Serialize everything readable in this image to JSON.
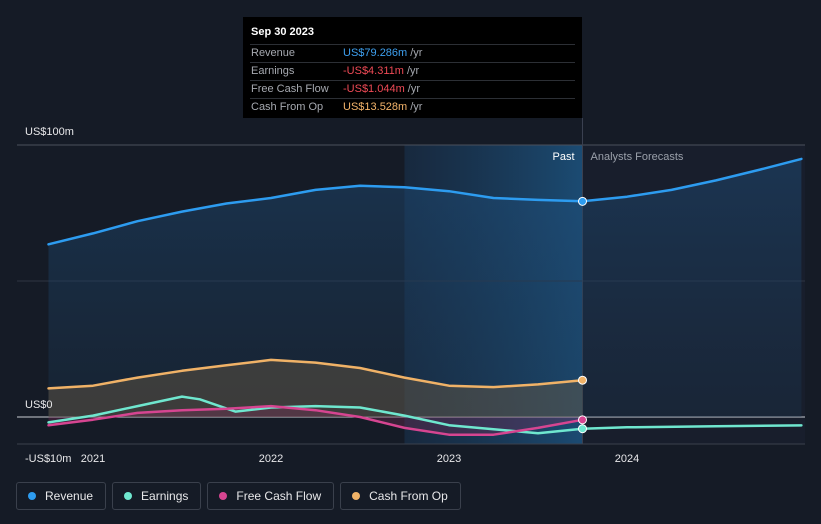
{
  "tooltip": {
    "date": "Sep 30 2023",
    "rows": [
      {
        "label": "Revenue",
        "value": "US$79.286m",
        "unit": "/yr",
        "color": "#3ea0f0"
      },
      {
        "label": "Earnings",
        "value": "-US$4.311m",
        "unit": "/yr",
        "color": "#f04a56"
      },
      {
        "label": "Free Cash Flow",
        "value": "-US$1.044m",
        "unit": "/yr",
        "color": "#f04a56"
      },
      {
        "label": "Cash From Op",
        "value": "US$13.528m",
        "unit": "/yr",
        "color": "#f5b56b"
      }
    ]
  },
  "labels": {
    "past": "Past",
    "forecast": "Analysts Forecasts"
  },
  "legend": [
    {
      "label": "Revenue",
      "color": "#2d9cf0"
    },
    {
      "label": "Earnings",
      "color": "#6fe7cf"
    },
    {
      "label": "Free Cash Flow",
      "color": "#d64591"
    },
    {
      "label": "Cash From Op",
      "color": "#f0b267"
    }
  ],
  "chart_data": {
    "type": "line",
    "y_tick_labels": [
      "US$100m",
      "US$0",
      "-US$10m"
    ],
    "x_tick_labels": [
      "2021",
      "2022",
      "2023",
      "2024"
    ],
    "ylim": [
      -10,
      100
    ],
    "xlim": [
      2020.6,
      2024.98
    ],
    "past_end": 2023.75,
    "highlight_start": 2022.75,
    "series": [
      {
        "name": "Revenue",
        "color": "#2d9cf0",
        "x": [
          2020.75,
          2021.0,
          2021.25,
          2021.5,
          2021.75,
          2022.0,
          2022.25,
          2022.5,
          2022.75,
          2023.0,
          2023.25,
          2023.5,
          2023.75
        ],
        "y": [
          63.5,
          67.5,
          72.0,
          75.5,
          78.5,
          80.5,
          83.5,
          85.0,
          84.5,
          83.0,
          80.5,
          79.8,
          79.286
        ]
      },
      {
        "name": "Revenue forecast",
        "color": "#2d9cf0",
        "x": [
          2023.75,
          2024.0,
          2024.25,
          2024.5,
          2024.75,
          2024.98
        ],
        "y": [
          79.286,
          81.0,
          83.5,
          87.0,
          91.0,
          94.9
        ]
      },
      {
        "name": "Earnings",
        "color": "#6fe7cf",
        "x": [
          2020.75,
          2021.0,
          2021.25,
          2021.5,
          2021.6,
          2021.8,
          2022.0,
          2022.25,
          2022.5,
          2022.75,
          2023.0,
          2023.25,
          2023.5,
          2023.75
        ],
        "y": [
          -2.0,
          0.5,
          4.0,
          7.5,
          6.5,
          2.0,
          3.5,
          4.0,
          3.5,
          0.5,
          -3.0,
          -4.5,
          -6.0,
          -4.311
        ]
      },
      {
        "name": "Earnings forecast",
        "color": "#6fe7cf",
        "x": [
          2023.75,
          2024.0,
          2024.5,
          2024.98
        ],
        "y": [
          -4.311,
          -3.8,
          -3.4,
          -3.1
        ]
      },
      {
        "name": "Free Cash Flow",
        "color": "#d64591",
        "x": [
          2020.75,
          2021.0,
          2021.25,
          2021.5,
          2021.75,
          2022.0,
          2022.25,
          2022.5,
          2022.75,
          2023.0,
          2023.25,
          2023.5,
          2023.75
        ],
        "y": [
          -3.0,
          -1.0,
          1.5,
          2.5,
          3.0,
          4.0,
          2.5,
          0.0,
          -4.0,
          -6.5,
          -6.5,
          -4.0,
          -1.044
        ]
      },
      {
        "name": "Cash From Op",
        "color": "#f0b267",
        "x": [
          2020.75,
          2021.0,
          2021.25,
          2021.5,
          2021.75,
          2022.0,
          2022.25,
          2022.5,
          2022.75,
          2023.0,
          2023.25,
          2023.5,
          2023.75
        ],
        "y": [
          10.5,
          11.5,
          14.5,
          17.0,
          19.0,
          21.0,
          20.0,
          18.0,
          14.5,
          11.5,
          11.0,
          12.0,
          13.528
        ]
      }
    ]
  }
}
